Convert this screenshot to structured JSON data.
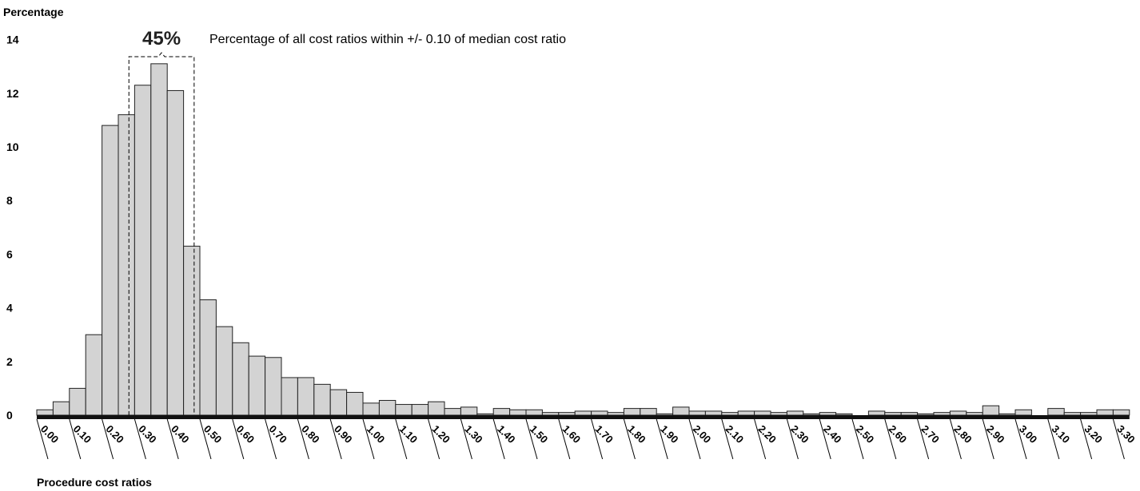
{
  "chart_data": {
    "type": "bar",
    "ylabel": "Percentage",
    "xlabel": "Procedure cost ratios",
    "ylim": [
      0,
      14
    ],
    "y_ticks": [
      "0",
      "2",
      "4",
      "6",
      "8",
      "10",
      "12",
      "14"
    ],
    "x_tick_labels": [
      "0.00",
      "0.10",
      "0.20",
      "0.30",
      "0.40",
      "0.50",
      "0.60",
      "0.70",
      "0.80",
      "0.90",
      "1.00",
      "1.10",
      "1.20",
      "1.30",
      "1.40",
      "1.50",
      "1.60",
      "1.70",
      "1.80",
      "1.90",
      "2.00",
      "2.10",
      "2.20",
      "2.30",
      "2.40",
      "2.50",
      "2.60",
      "2.70",
      "2.80",
      "2.90",
      "3.00",
      "3.10",
      "3.20",
      "3.30"
    ],
    "bin_width": 0.05,
    "bin_start": 0.0,
    "values": [
      0.2,
      0.5,
      1.0,
      3.0,
      10.8,
      11.2,
      12.3,
      13.1,
      12.1,
      6.3,
      4.3,
      3.3,
      2.7,
      2.2,
      2.15,
      1.4,
      1.4,
      1.15,
      0.95,
      0.85,
      0.45,
      0.55,
      0.4,
      0.4,
      0.5,
      0.25,
      0.3,
      0.05,
      0.25,
      0.2,
      0.2,
      0.1,
      0.1,
      0.15,
      0.15,
      0.1,
      0.25,
      0.25,
      0.05,
      0.3,
      0.15,
      0.15,
      0.1,
      0.15,
      0.15,
      0.1,
      0.15,
      0.05,
      0.1,
      0.05,
      0.0,
      0.15,
      0.1,
      0.1,
      0.05,
      0.1,
      0.15,
      0.1,
      0.35,
      0.05,
      0.2,
      0.0,
      0.25,
      0.1,
      0.1,
      0.2,
      0.2
    ],
    "grid": false,
    "bar_color": "#d3d3d3",
    "annotation": {
      "value": "45%",
      "text": "Percentage of all cost ratios within +/- 0.10 of median cost ratio",
      "range": [
        0.28,
        0.48
      ]
    }
  }
}
